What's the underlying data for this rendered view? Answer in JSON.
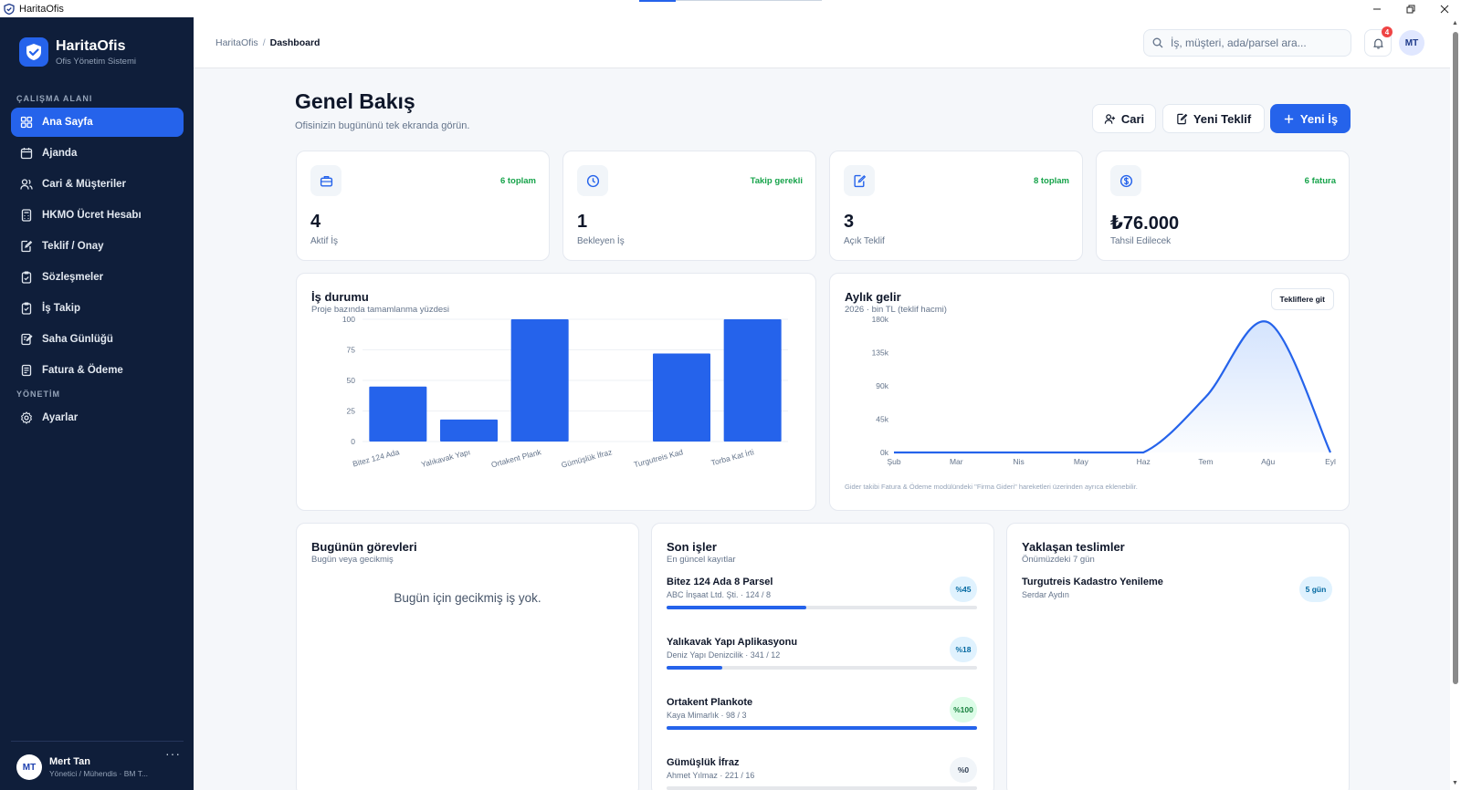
{
  "window": {
    "title": "HaritaOfis"
  },
  "brand": {
    "name": "HaritaOfis",
    "subtitle": "Ofis Yönetim Sistemi"
  },
  "sidebar": {
    "section_work": "ÇALIŞMA ALANI",
    "section_admin": "YÖNETİM",
    "items": [
      {
        "label": "Ana Sayfa",
        "icon": "grid-icon",
        "active": true
      },
      {
        "label": "Ajanda",
        "icon": "calendar-icon"
      },
      {
        "label": "Cari & Müşteriler",
        "icon": "users-icon"
      },
      {
        "label": "HKMO Ücret Hesabı",
        "icon": "calculator-icon"
      },
      {
        "label": "Teklif / Onay",
        "icon": "edit-doc-icon"
      },
      {
        "label": "Sözleşmeler",
        "icon": "contract-icon"
      },
      {
        "label": "İş Takip",
        "icon": "clipboard-check-icon"
      },
      {
        "label": "Saha Günlüğü",
        "icon": "notebook-icon"
      },
      {
        "label": "Fatura & Ödeme",
        "icon": "receipt-icon"
      },
      {
        "label": "Ayarlar",
        "icon": "gear-icon"
      }
    ],
    "user": {
      "initials": "MT",
      "name": "Mert Tan",
      "role": "Yönetici / Mühendis · BM T..."
    }
  },
  "header": {
    "breadcrumb_root": "HaritaOfis",
    "breadcrumb_sep": "/",
    "breadcrumb_current": "Dashboard",
    "search_placeholder": "İş, müşteri, ada/parsel ara...",
    "notifications": "4",
    "avatar": "MT"
  },
  "page": {
    "title": "Genel Bakış",
    "subtitle": "Ofisinizin bugününü tek ekranda görün.",
    "btn_cari": "Cari",
    "btn_teklif": "Yeni Teklif",
    "btn_is": "Yeni İş"
  },
  "stats": [
    {
      "value": "4",
      "label": "Aktif İş",
      "badge": "6 toplam",
      "icon": "briefcase-icon"
    },
    {
      "value": "1",
      "label": "Bekleyen İş",
      "badge": "Takip gerekli",
      "icon": "clock-icon"
    },
    {
      "value": "3",
      "label": "Açık Teklif",
      "badge": "8 toplam",
      "icon": "edit-doc-icon"
    },
    {
      "value": "₺76.000",
      "label": "Tahsil Edilecek",
      "badge": "6 fatura",
      "icon": "dollar-icon"
    }
  ],
  "status_card": {
    "title": "İş durumu",
    "subtitle": "Proje bazında tamamlanma yüzdesi"
  },
  "income_card": {
    "title": "Aylık gelir",
    "subtitle": "2026 · bin TL (teklif hacmi)",
    "button": "Tekliflere git",
    "footnote": "Gider takibi Fatura & Ödeme modülündeki \"Firma Gideri\" hareketleri üzerinden ayrıca eklenebilir."
  },
  "chart_data": [
    {
      "type": "bar",
      "title": "İş durumu",
      "subtitle": "Proje bazında tamamlanma yüzdesi",
      "categories": [
        "Bitez 124 Ada",
        "Yalıkavak Yapı",
        "Ortakent Plank",
        "Gümüşlük İfraz",
        "Turgutreis Kad",
        "Torba Kat İrti"
      ],
      "values": [
        45,
        18,
        100,
        0,
        72,
        100
      ],
      "yticks": [
        "0",
        "25",
        "50",
        "75",
        "100"
      ],
      "ylim": [
        0,
        100
      ],
      "color": "#2563eb"
    },
    {
      "type": "area",
      "title": "Aylık gelir",
      "subtitle": "2026 · bin TL (teklif hacmi)",
      "categories": [
        "Şub",
        "Mar",
        "Nis",
        "May",
        "Haz",
        "Tem",
        "Ağu",
        "Eyl"
      ],
      "values": [
        0,
        0,
        0,
        0,
        0,
        75,
        176,
        0
      ],
      "yticks": [
        "0k",
        "45k",
        "90k",
        "135k",
        "180k"
      ],
      "ylim": [
        0,
        180
      ],
      "color": "#2563eb"
    }
  ],
  "tasks_card": {
    "title": "Bugünün görevleri",
    "subtitle": "Bugün veya gecikmiş",
    "empty": "Bugün için gecikmiş iş yok."
  },
  "recent_card": {
    "title": "Son işler",
    "subtitle": "En güncel kayıtlar",
    "items": [
      {
        "title": "Bitez 124 Ada 8 Parsel",
        "meta": "ABC İnşaat Ltd. Şti. · 124 / 8",
        "pill": "%45",
        "progress": 45
      },
      {
        "title": "Yalıkavak Yapı Aplikasyonu",
        "meta": "Deniz Yapı Denizcilik · 341 / 12",
        "pill": "%18",
        "progress": 18
      },
      {
        "title": "Ortakent Plankote",
        "meta": "Kaya Mimarlık · 98 / 3",
        "pill": "%100",
        "progress": 100
      },
      {
        "title": "Gümüşlük İfraz",
        "meta": "Ahmet Yılmaz · 221 / 16",
        "pill": "%0",
        "progress": 0
      }
    ]
  },
  "upcoming_card": {
    "title": "Yaklaşan teslimler",
    "subtitle": "Önümüzdeki 7 gün",
    "items": [
      {
        "title": "Turgutreis Kadastro Yenileme",
        "meta": "Serdar Aydın",
        "pill": "5 gün"
      }
    ]
  }
}
